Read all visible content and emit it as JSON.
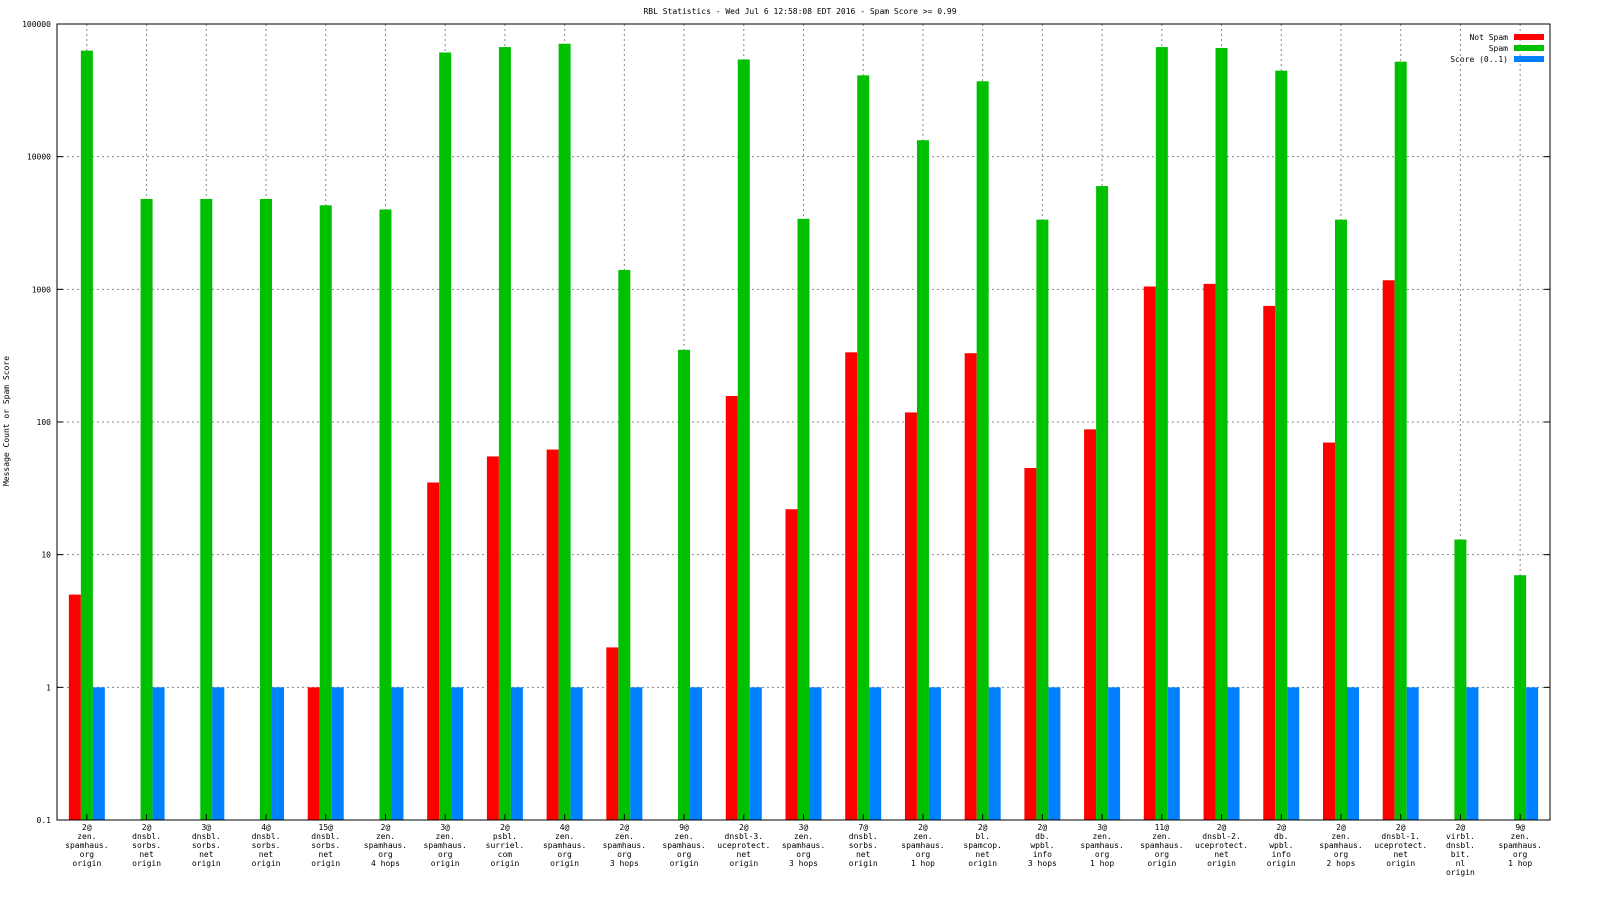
{
  "chart_data": {
    "type": "bar",
    "title": "RBL Statistics - Wed Jul  6 12:58:08 EDT 2016 - Spam Score >= 0.99",
    "ylabel": "Message Count or Spam Score",
    "xlabel": "",
    "yscale": "log",
    "ylim": [
      0.1,
      100000
    ],
    "yticks": [
      "0.1",
      "1",
      "10",
      "100",
      "1000",
      "10000",
      "100000"
    ],
    "grid": true,
    "legend_position": "top-right",
    "categories": [
      [
        "2@",
        "zen.",
        "spamhaus.",
        "org",
        "origin"
      ],
      [
        "2@",
        "dnsbl.",
        "sorbs.",
        "net",
        "origin"
      ],
      [
        "3@",
        "dnsbl.",
        "sorbs.",
        "net",
        "origin"
      ],
      [
        "4@",
        "dnsbl.",
        "sorbs.",
        "net",
        "origin"
      ],
      [
        "15@",
        "dnsbl.",
        "sorbs.",
        "net",
        "origin"
      ],
      [
        "2@",
        "zen.",
        "spamhaus.",
        "org",
        "4 hops"
      ],
      [
        "3@",
        "zen.",
        "spamhaus.",
        "org",
        "origin"
      ],
      [
        "2@",
        "psbl.",
        "surriel.",
        "com",
        "origin"
      ],
      [
        "4@",
        "zen.",
        "spamhaus.",
        "org",
        "origin"
      ],
      [
        "2@",
        "zen.",
        "spamhaus.",
        "org",
        "3 hops"
      ],
      [
        "9@",
        "zen.",
        "spamhaus.",
        "org",
        "origin"
      ],
      [
        "2@",
        "dnsbl-3.",
        "uceprotect.",
        "net",
        "origin"
      ],
      [
        "3@",
        "zen.",
        "spamhaus.",
        "org",
        "3 hops"
      ],
      [
        "7@",
        "dnsbl.",
        "sorbs.",
        "net",
        "origin"
      ],
      [
        "2@",
        "zen.",
        "spamhaus.",
        "org",
        "1 hop"
      ],
      [
        "2@",
        "bl.",
        "spamcop.",
        "net",
        "origin"
      ],
      [
        "2@",
        "db.",
        "wpbl.",
        "info",
        "3 hops"
      ],
      [
        "3@",
        "zen.",
        "spamhaus.",
        "org",
        "1 hop"
      ],
      [
        "11@",
        "zen.",
        "spamhaus.",
        "org",
        "origin"
      ],
      [
        "2@",
        "dnsbl-2.",
        "uceprotect.",
        "net",
        "origin"
      ],
      [
        "2@",
        "db.",
        "wpbl.",
        "info",
        "origin"
      ],
      [
        "2@",
        "zen.",
        "spamhaus.",
        "org",
        "2 hops"
      ],
      [
        "2@",
        "dnsbl-1.",
        "uceprotect.",
        "net",
        "origin"
      ],
      [
        "2@",
        "virbl.",
        "dnsbl.",
        "bit.",
        "nl",
        "origin"
      ],
      [
        "9@",
        "zen.",
        "spamhaus.",
        "org",
        "1 hop"
      ]
    ],
    "series": [
      {
        "name": "Not Spam",
        "color": "#ff0000",
        "values": [
          5,
          null,
          null,
          null,
          1,
          null,
          35,
          55,
          62,
          2,
          null,
          157,
          22,
          335,
          118,
          330,
          45,
          88,
          1050,
          1100,
          750,
          70,
          1170,
          null,
          null
        ]
      },
      {
        "name": "Spam",
        "color": "#00c000",
        "values": [
          63000,
          4800,
          4800,
          4800,
          4300,
          4000,
          61000,
          67000,
          71000,
          1400,
          350,
          54000,
          3400,
          41000,
          13300,
          37000,
          3350,
          6000,
          67000,
          66000,
          44500,
          3350,
          52000,
          13,
          7
        ]
      },
      {
        "name": "Score (0..1)",
        "color": "#0080ff",
        "values": [
          1,
          1,
          1,
          1,
          1,
          1,
          1,
          1,
          1,
          1,
          1,
          1,
          1,
          1,
          1,
          1,
          1,
          1,
          1,
          1,
          1,
          1,
          1,
          1,
          1
        ]
      }
    ]
  }
}
